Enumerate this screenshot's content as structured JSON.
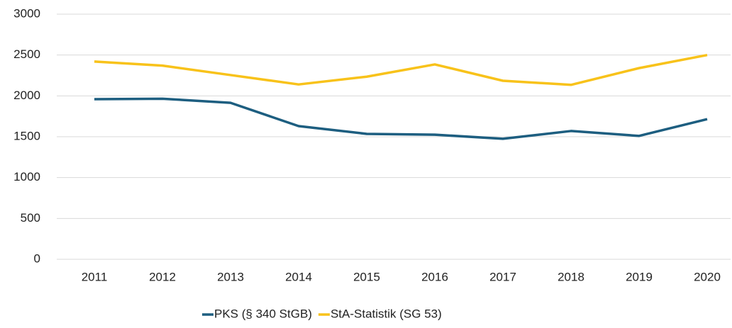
{
  "chart_data": {
    "type": "line",
    "categories": [
      "2011",
      "2012",
      "2013",
      "2014",
      "2015",
      "2016",
      "2017",
      "2018",
      "2019",
      "2020"
    ],
    "series": [
      {
        "name": "PKS (§ 340 StGB)",
        "color": "#1d5e80",
        "values": [
          1960,
          1965,
          1915,
          1630,
          1535,
          1525,
          1475,
          1570,
          1510,
          1715
        ]
      },
      {
        "name": "StA-Statistik (SG 53)",
        "color": "#f8c21a",
        "values": [
          2420,
          2370,
          2255,
          2140,
          2235,
          2385,
          2185,
          2135,
          2340,
          2500
        ]
      }
    ],
    "ylim": [
      0,
      3000
    ],
    "yticks": [
      0,
      500,
      1000,
      1500,
      2000,
      2500,
      3000
    ],
    "grid": true,
    "legend": "bottom"
  }
}
